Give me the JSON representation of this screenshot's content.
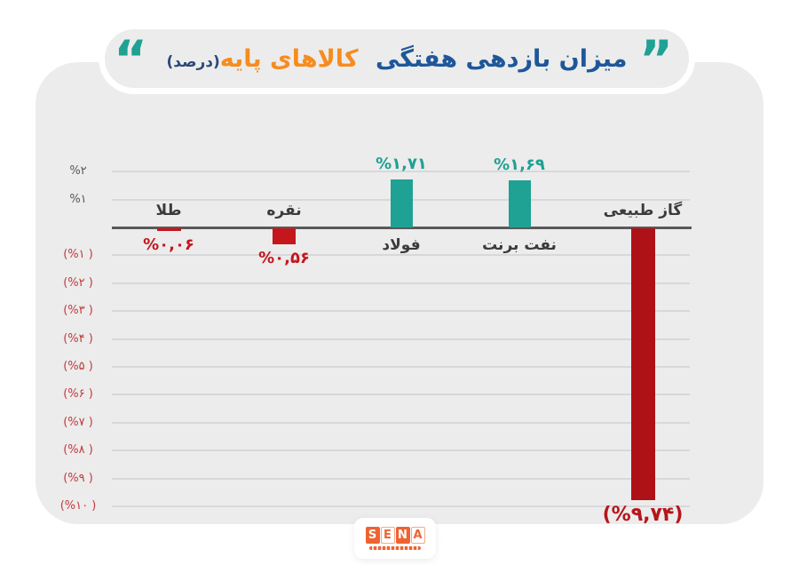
{
  "header": {
    "title_main": "میزان بازدهی هفتگی",
    "title_highlight": "کالاهای پایه",
    "title_suffix": "(درصد)",
    "quote_right": "”",
    "quote_left": "“"
  },
  "logo": {
    "letters": [
      "S",
      "E",
      "N",
      "A"
    ]
  },
  "colors": {
    "card_bg": "#ececec",
    "title_blue": "#1e5799",
    "title_orange": "#f78c1e",
    "title_navy": "#2b4a78",
    "teal": "#1fa193",
    "red": "#c4161c",
    "dark_red": "#ae1117",
    "gridline": "#d8d8da",
    "axis": "#59595b",
    "category_label": "#3b3b3d",
    "tick_negative": "#c03a3e",
    "logo_orange": "#ee6331"
  },
  "chart_data": {
    "type": "bar",
    "title": "میزان بازدهی هفتگی کالاهای پایه (درصد)",
    "ylabel": "درصد",
    "ylim": [
      -10,
      2
    ],
    "grid": true,
    "legend": false,
    "categories": [
      "طلا",
      "نقره",
      "فولاد",
      "نفت برنت",
      "گاز طبیعی"
    ],
    "values": [
      -0.06,
      -0.56,
      1.71,
      1.69,
      -9.74
    ],
    "bars": [
      {
        "key": "gold",
        "label": "طلا",
        "value": -0.06,
        "display": "%۰,۰۶",
        "bar_color": "#c4161c",
        "value_color": "#c4161c",
        "big_label": false
      },
      {
        "key": "silver",
        "label": "نقره",
        "value": -0.56,
        "display": "%۰,۵۶",
        "bar_color": "#c4161c",
        "value_color": "#c4161c",
        "big_label": false
      },
      {
        "key": "steel",
        "label": "فولاد",
        "value": 1.71,
        "display": "%۱,۷۱",
        "bar_color": "#1fa193",
        "value_color": "#1fa193",
        "big_label": false
      },
      {
        "key": "brent-oil",
        "label": "نفت برنت",
        "value": 1.69,
        "display": "%۱,۶۹",
        "bar_color": "#1fa193",
        "value_color": "#1fa193",
        "big_label": false
      },
      {
        "key": "natural-gas",
        "label": "گاز طبیعی",
        "value": -9.74,
        "display": "(%۹,۷۴)",
        "bar_color": "#ae1117",
        "value_color": "#b5161b",
        "big_label": true
      }
    ],
    "yticks": [
      {
        "value": 2,
        "label": "%۲",
        "negative": false
      },
      {
        "value": 1,
        "label": "%۱",
        "negative": false
      },
      {
        "value": -1,
        "label": "(%۱ )",
        "negative": true
      },
      {
        "value": -2,
        "label": "(%۲ )",
        "negative": true
      },
      {
        "value": -3,
        "label": "(%۳ )",
        "negative": true
      },
      {
        "value": -4,
        "label": "(%۴ )",
        "negative": true
      },
      {
        "value": -5,
        "label": "(%۵ )",
        "negative": true
      },
      {
        "value": -6,
        "label": "(%۶ )",
        "negative": true
      },
      {
        "value": -7,
        "label": "(%۷ )",
        "negative": true
      },
      {
        "value": -8,
        "label": "(%۸ )",
        "negative": true
      },
      {
        "value": -9,
        "label": "(%۹ )",
        "negative": true
      },
      {
        "value": -10,
        "label": "(%۱۰ )",
        "negative": true
      }
    ]
  }
}
